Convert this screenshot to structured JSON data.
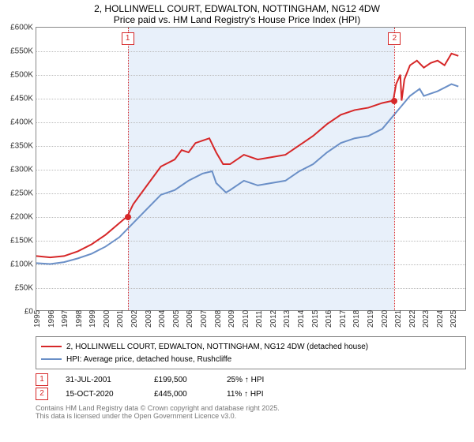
{
  "title_line1": "2, HOLLINWELL COURT, EDWALTON, NOTTINGHAM, NG12 4DW",
  "title_line2": "Price paid vs. HM Land Registry's House Price Index (HPI)",
  "chart": {
    "background_color": "#ffffff",
    "plot_border_color": "#888888",
    "grid_color": "#bbbbbb",
    "shade_color": "#e8f0fa",
    "x_year_min": 1995,
    "x_year_max": 2026,
    "y_min": 0,
    "y_max": 600000,
    "y_step": 50000,
    "y_tick_labels": [
      "£0",
      "£50K",
      "£100K",
      "£150K",
      "£200K",
      "£250K",
      "£300K",
      "£350K",
      "£400K",
      "£450K",
      "£500K",
      "£550K",
      "£600K"
    ],
    "x_ticks": [
      1995,
      1996,
      1997,
      1998,
      1999,
      2000,
      2001,
      2002,
      2003,
      2004,
      2005,
      2006,
      2007,
      2008,
      2009,
      2010,
      2011,
      2012,
      2013,
      2014,
      2015,
      2016,
      2017,
      2018,
      2019,
      2020,
      2021,
      2022,
      2023,
      2024,
      2025
    ],
    "shade_from_year": 2001.58,
    "shade_to_year": 2020.79,
    "series_red": {
      "color": "#d62728",
      "width": 2,
      "label": "2, HOLLINWELL COURT, EDWALTON, NOTTINGHAM, NG12 4DW (detached house)",
      "points": [
        [
          1995,
          115000
        ],
        [
          1996,
          112000
        ],
        [
          1997,
          115000
        ],
        [
          1998,
          125000
        ],
        [
          1999,
          140000
        ],
        [
          2000,
          160000
        ],
        [
          2001,
          185000
        ],
        [
          2001.58,
          199500
        ],
        [
          2002,
          225000
        ],
        [
          2003,
          265000
        ],
        [
          2004,
          305000
        ],
        [
          2005,
          320000
        ],
        [
          2005.5,
          340000
        ],
        [
          2006,
          335000
        ],
        [
          2006.5,
          355000
        ],
        [
          2007,
          360000
        ],
        [
          2007.5,
          365000
        ],
        [
          2008,
          335000
        ],
        [
          2008.5,
          310000
        ],
        [
          2009,
          310000
        ],
        [
          2010,
          330000
        ],
        [
          2011,
          320000
        ],
        [
          2012,
          325000
        ],
        [
          2013,
          330000
        ],
        [
          2014,
          350000
        ],
        [
          2015,
          370000
        ],
        [
          2016,
          395000
        ],
        [
          2017,
          415000
        ],
        [
          2018,
          425000
        ],
        [
          2019,
          430000
        ],
        [
          2020,
          440000
        ],
        [
          2020.79,
          445000
        ],
        [
          2021,
          480000
        ],
        [
          2021.3,
          500000
        ],
        [
          2021.4,
          445000
        ],
        [
          2021.6,
          490000
        ],
        [
          2022,
          520000
        ],
        [
          2022.5,
          530000
        ],
        [
          2023,
          515000
        ],
        [
          2023.5,
          525000
        ],
        [
          2024,
          530000
        ],
        [
          2024.5,
          520000
        ],
        [
          2025,
          545000
        ],
        [
          2025.5,
          540000
        ]
      ]
    },
    "series_blue": {
      "color": "#6a8fc7",
      "width": 2,
      "label": "HPI: Average price, detached house, Rushcliffe",
      "points": [
        [
          1995,
          100000
        ],
        [
          1996,
          98000
        ],
        [
          1997,
          102000
        ],
        [
          1998,
          110000
        ],
        [
          1999,
          120000
        ],
        [
          2000,
          135000
        ],
        [
          2001,
          155000
        ],
        [
          2002,
          185000
        ],
        [
          2003,
          215000
        ],
        [
          2004,
          245000
        ],
        [
          2005,
          255000
        ],
        [
          2006,
          275000
        ],
        [
          2007,
          290000
        ],
        [
          2007.7,
          295000
        ],
        [
          2008,
          270000
        ],
        [
          2008.7,
          250000
        ],
        [
          2009,
          255000
        ],
        [
          2010,
          275000
        ],
        [
          2011,
          265000
        ],
        [
          2012,
          270000
        ],
        [
          2013,
          275000
        ],
        [
          2014,
          295000
        ],
        [
          2015,
          310000
        ],
        [
          2016,
          335000
        ],
        [
          2017,
          355000
        ],
        [
          2018,
          365000
        ],
        [
          2019,
          370000
        ],
        [
          2020,
          385000
        ],
        [
          2021,
          420000
        ],
        [
          2022,
          455000
        ],
        [
          2022.7,
          470000
        ],
        [
          2023,
          455000
        ],
        [
          2024,
          465000
        ],
        [
          2025,
          480000
        ],
        [
          2025.5,
          475000
        ]
      ]
    },
    "markers": [
      {
        "id": "1",
        "year": 2001.58,
        "price": 199500,
        "color": "#d62728"
      },
      {
        "id": "2",
        "year": 2020.79,
        "price": 445000,
        "color": "#d62728"
      }
    ]
  },
  "sales": [
    {
      "id": "1",
      "date": "31-JUL-2001",
      "price": "£199,500",
      "diff": "25% ↑ HPI",
      "color": "#d62728"
    },
    {
      "id": "2",
      "date": "15-OCT-2020",
      "price": "£445,000",
      "diff": "11% ↑ HPI",
      "color": "#d62728"
    }
  ],
  "footer_line1": "Contains HM Land Registry data © Crown copyright and database right 2025.",
  "footer_line2": "This data is licensed under the Open Government Licence v3.0."
}
